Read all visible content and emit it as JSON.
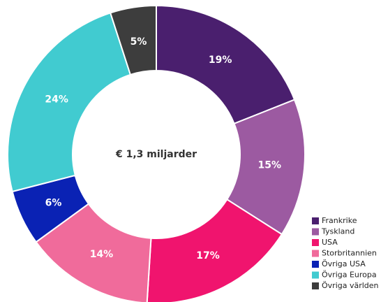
{
  "chart_data": {
    "type": "pie",
    "center_label": "€ 1,3 miljarder",
    "categories": [
      "Frankrike",
      "Tyskland",
      "USA",
      "Storbritannien",
      "Övriga USA",
      "Övriga Europa",
      "Övriga världen"
    ],
    "values": [
      19,
      15,
      17,
      14,
      6,
      24,
      5
    ],
    "value_labels": [
      "19%",
      "15%",
      "17%",
      "14%",
      "6%",
      "24%",
      "5%"
    ],
    "colors": [
      "#4a1f6e",
      "#9c5aa1",
      "#f0146e",
      "#f06b9b",
      "#0a22b4",
      "#41cbd0",
      "#3d3d3d"
    ],
    "legend": "bottom-right"
  }
}
